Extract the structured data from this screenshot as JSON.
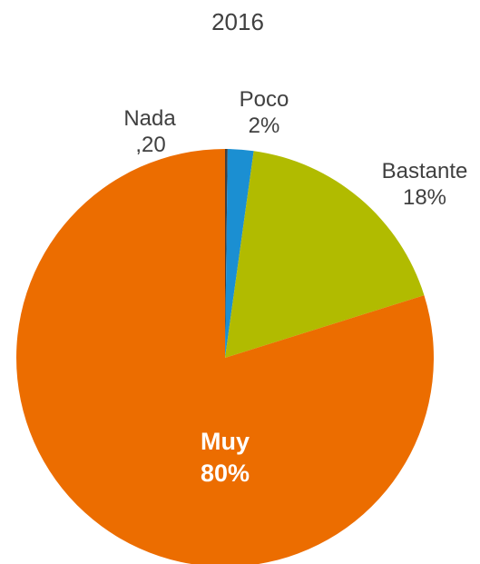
{
  "chart_data": {
    "type": "pie",
    "title": "2016",
    "start_angle_deg": 0,
    "direction": "clockwise",
    "slices": [
      {
        "name": "Nada",
        "value": 0.2,
        "label_line1": "Nada",
        "label_line2": ",20",
        "color": "#404040"
      },
      {
        "name": "Poco",
        "value": 2,
        "label_line1": "Poco",
        "label_line2": "2%",
        "color": "#1b8fd2"
      },
      {
        "name": "Bastante",
        "value": 18,
        "label_line1": "Bastante",
        "label_line2": "18%",
        "color": "#b1bb00"
      },
      {
        "name": "Muy",
        "value": 80,
        "label_line1": "Muy",
        "label_line2": "80%",
        "color": "#ec6d00"
      }
    ]
  }
}
